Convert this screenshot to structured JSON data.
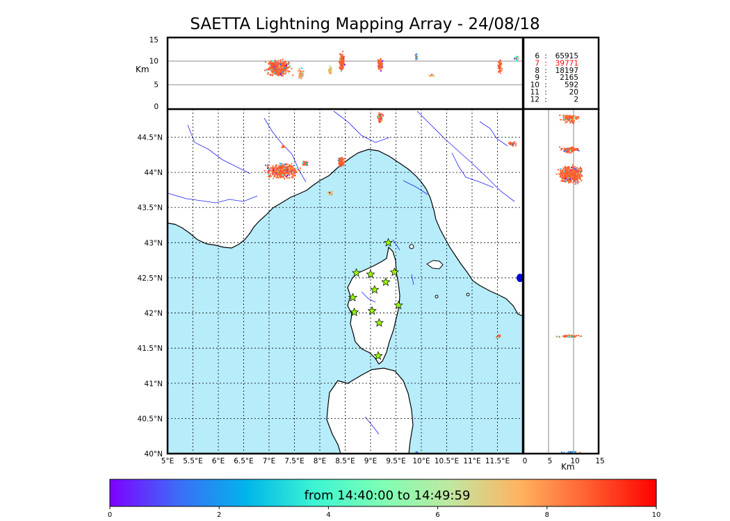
{
  "title": "SAETTA Lightning Mapping Array - 24/08/18",
  "altitude_panel": {
    "unit_label": "Km",
    "ticks": [
      "0",
      "5",
      "10",
      "15"
    ]
  },
  "side_panel": {
    "unit_label": "Km",
    "ticks": [
      "0",
      "5",
      "10",
      "15"
    ]
  },
  "map": {
    "lon_ticks": [
      "5°E",
      "5.5°E",
      "6°E",
      "6.5°E",
      "7°E",
      "7.5°E",
      "8°E",
      "8.5°E",
      "9°E",
      "9.5°E",
      "10°E",
      "10.5°E",
      "11°E",
      "11.5°E"
    ],
    "lat_ticks": [
      "40°N",
      "40.5°N",
      "41°N",
      "41.5°N",
      "42°N",
      "42.5°N",
      "43°N",
      "43.5°N",
      "44°N",
      "44.5°N"
    ],
    "sea_color": "#b7ecfb",
    "land_color": "#ffffff",
    "river_color": "#2020ff",
    "station_color": "#99ff00",
    "station_marker": "star-icon"
  },
  "counts": [
    {
      "label": "6",
      "sep": ":",
      "value": "65915",
      "color": "#000000"
    },
    {
      "label": "7",
      "sep": ":",
      "value": "39771",
      "color": "#ff0000"
    },
    {
      "label": "8",
      "sep": ":",
      "value": "18197",
      "color": "#000000"
    },
    {
      "label": "9",
      "sep": ":",
      "value": "2165",
      "color": "#000000"
    },
    {
      "label": "10",
      "sep": ":",
      "value": "592",
      "color": "#000000"
    },
    {
      "label": "11",
      "sep": ":",
      "value": "20",
      "color": "#000000"
    },
    {
      "label": "12",
      "sep": ":",
      "value": "2",
      "color": "#000000"
    }
  ],
  "colorbar": {
    "text": "from 14:40:00 to 14:49:59",
    "ticks": [
      "0",
      "2",
      "4",
      "6",
      "8",
      "10"
    ],
    "colormap": [
      "#7f00ff",
      "#3d6cf8",
      "#00b5eb",
      "#3df5d2",
      "#7fffb4",
      "#c0e7a0",
      "#ffb360",
      "#ff5f30",
      "#ff0000"
    ]
  }
}
